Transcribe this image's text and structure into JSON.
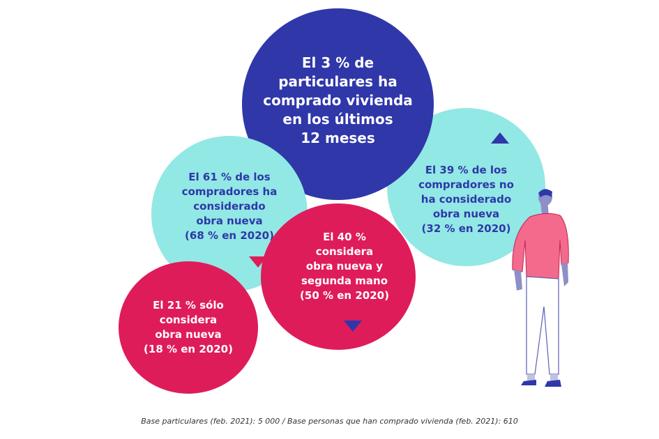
{
  "colors": {
    "blue": "#2f37a9",
    "cyan": "#92e8e4",
    "pink": "#df1c5a"
  },
  "bubbles": {
    "main": "El 3 % de\nparticulares ha\ncomprado vivienda\nen los últimos\n12 meses",
    "considered_new": "El 61 % de los\ncompradores ha\nconsiderado\nobra nueva\n(68 % en 2020)",
    "not_considered_new": "El 39 % de los\ncompradores no\nha considerado\nobra nueva\n(32 % en 2020)",
    "new_and_second_hand": "El 40 %\nconsidera\nobra nueva y\nsegunda mano\n(50 % en 2020)",
    "only_new": "El 21 % sólo\nconsidera\nobra nueva\n(18 % en 2020)"
  },
  "trend_icons": {
    "not_considered_new": "triangle-up",
    "considered_new": "triangle-down",
    "new_and_second_hand": "triangle-down"
  },
  "footnote": "Base particulares (feb. 2021): 5 000 / Base personas que han comprado vivienda (feb. 2021): 610"
}
